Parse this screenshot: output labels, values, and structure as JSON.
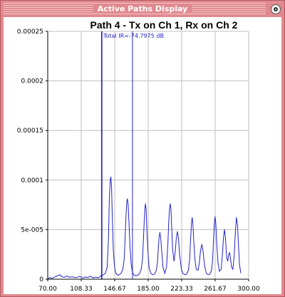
{
  "window": {
    "title": "Active Paths Display",
    "close_icon": "close-circle-icon"
  },
  "colors": {
    "frame": "#e08a8f",
    "plot_line": "#2222cc",
    "grid": "#bfbfbf"
  },
  "chart_data": {
    "type": "line",
    "title": "Path 4 - Tx on Ch 1, Rx on Ch 2",
    "annotation": "Total IR=-74.7975 dB",
    "xlabel": "",
    "ylabel": "",
    "xlim": [
      70.0,
      300.0
    ],
    "ylim": [
      0,
      0.00025
    ],
    "x_ticks": [
      "70.00",
      "108.33",
      "146.67",
      "185.00",
      "223.33",
      "261.67",
      "300.00"
    ],
    "x_tick_values": [
      70.0,
      108.33,
      146.67,
      185.0,
      223.33,
      261.67,
      300.0
    ],
    "y_ticks": [
      "0",
      "5e-005",
      "0.0001",
      "0.00015",
      "0.0002",
      "0.00025"
    ],
    "y_tick_values": [
      0,
      5e-05,
      0.0001,
      0.00015,
      0.0002,
      0.00025
    ],
    "grid": true,
    "markers": [
      {
        "x": 131.5,
        "type": "vertical"
      },
      {
        "x": 132.1,
        "type": "vertical"
      },
      {
        "x": 167.0,
        "type": "vertical"
      }
    ],
    "series": [
      {
        "peaks": [
          {
            "x": 142.3,
            "y": 0.000103
          },
          {
            "x": 161.2,
            "y": 8.1e-05
          },
          {
            "x": 181.9,
            "y": 7.6e-05
          },
          {
            "x": 198.4,
            "y": 4.7e-05
          },
          {
            "x": 210.3,
            "y": 7.6e-05
          },
          {
            "x": 218.4,
            "y": 4.8e-05
          },
          {
            "x": 235.3,
            "y": 6.2e-05
          },
          {
            "x": 246.4,
            "y": 3.5e-05
          },
          {
            "x": 261.6,
            "y": 6.3e-05
          },
          {
            "x": 272.3,
            "y": 5e-05
          },
          {
            "x": 278.0,
            "y": 2.7e-05
          },
          {
            "x": 286.0,
            "y": 6.2e-05
          }
        ],
        "points": [
          [
            70.0,
            0.0
          ],
          [
            72.0,
            1.5e-06
          ],
          [
            75.0,
            8e-07
          ],
          [
            78.0,
            2.2e-06
          ],
          [
            81.0,
            3.5e-06
          ],
          [
            84.0,
            4.5e-06
          ],
          [
            86.0,
            2.5e-06
          ],
          [
            89.0,
            2e-06
          ],
          [
            92.0,
            3.2e-06
          ],
          [
            95.0,
            1.8e-06
          ],
          [
            98.0,
            2.5e-06
          ],
          [
            101.0,
            1.5e-06
          ],
          [
            104.0,
            2e-06
          ],
          [
            107.0,
            2.8e-06
          ],
          [
            110.0,
            1e-06
          ],
          [
            113.0,
            2.2e-06
          ],
          [
            116.0,
            1.8e-06
          ],
          [
            119.0,
            3e-06
          ],
          [
            122.0,
            1.2e-06
          ],
          [
            125.0,
            2e-06
          ],
          [
            128.0,
            1.5e-06
          ],
          [
            131.0,
            3.5e-06
          ],
          [
            134.0,
            4.5e-06
          ],
          [
            136.0,
            6e-06
          ],
          [
            138.0,
            1.2e-05
          ],
          [
            139.5,
            4e-05
          ],
          [
            140.5,
            8e-05
          ],
          [
            141.5,
            0.0001
          ],
          [
            142.3,
            0.000103
          ],
          [
            143.0,
            9.5e-05
          ],
          [
            144.0,
            6e-05
          ],
          [
            145.0,
            3e-05
          ],
          [
            146.5,
            1.2e-05
          ],
          [
            148.0,
            6e-06
          ],
          [
            150.0,
            4e-06
          ],
          [
            152.0,
            4.5e-06
          ],
          [
            154.0,
            6e-06
          ],
          [
            156.0,
            1e-05
          ],
          [
            157.5,
            2e-05
          ],
          [
            158.5,
            4e-05
          ],
          [
            159.5,
            6.2e-05
          ],
          [
            160.5,
            7.8e-05
          ],
          [
            161.2,
            8.1e-05
          ],
          [
            162.0,
            7.6e-05
          ],
          [
            163.0,
            5.8e-05
          ],
          [
            164.0,
            3.5e-05
          ],
          [
            165.5,
            1.5e-05
          ],
          [
            167.0,
            7e-06
          ],
          [
            169.0,
            4e-06
          ],
          [
            171.0,
            3.5e-06
          ],
          [
            173.0,
            4e-06
          ],
          [
            175.0,
            5.5e-06
          ],
          [
            177.0,
            1e-05
          ],
          [
            178.5,
            2e-05
          ],
          [
            179.5,
            4e-05
          ],
          [
            180.5,
            6e-05
          ],
          [
            181.3,
            7.2e-05
          ],
          [
            181.9,
            7.6e-05
          ],
          [
            182.6,
            7e-05
          ],
          [
            183.5,
            5e-05
          ],
          [
            184.5,
            3e-05
          ],
          [
            186.0,
            1.2e-05
          ],
          [
            188.0,
            6e-06
          ],
          [
            190.0,
            4.5e-06
          ],
          [
            192.0,
            5e-06
          ],
          [
            194.0,
            8e-06
          ],
          [
            195.5,
            1.6e-05
          ],
          [
            196.5,
            3e-05
          ],
          [
            197.5,
            4.2e-05
          ],
          [
            198.4,
            4.7e-05
          ],
          [
            199.3,
            4.2e-05
          ],
          [
            200.5,
            2.8e-05
          ],
          [
            202.0,
            1.2e-05
          ],
          [
            204.0,
            6e-06
          ],
          [
            206.0,
            1.2e-05
          ],
          [
            207.5,
            3.5e-05
          ],
          [
            208.5,
            5.8e-05
          ],
          [
            209.5,
            7.2e-05
          ],
          [
            210.3,
            7.6e-05
          ],
          [
            211.1,
            7e-05
          ],
          [
            212.0,
            5e-05
          ],
          [
            213.0,
            3e-05
          ],
          [
            214.5,
            1.8e-05
          ],
          [
            216.0,
            2.8e-05
          ],
          [
            217.2,
            4.2e-05
          ],
          [
            218.4,
            4.8e-05
          ],
          [
            219.6,
            4.2e-05
          ],
          [
            221.0,
            2.5e-05
          ],
          [
            223.0,
            1e-05
          ],
          [
            225.0,
            5.5e-06
          ],
          [
            227.0,
            4.5e-06
          ],
          [
            229.0,
            5e-06
          ],
          [
            231.0,
            9e-06
          ],
          [
            232.5,
            2e-05
          ],
          [
            233.5,
            4e-05
          ],
          [
            234.5,
            5.6e-05
          ],
          [
            235.3,
            6.2e-05
          ],
          [
            236.1,
            5.6e-05
          ],
          [
            237.2,
            3.8e-05
          ],
          [
            238.5,
            2e-05
          ],
          [
            240.0,
            1e-05
          ],
          [
            242.0,
            9e-06
          ],
          [
            243.5,
            1.6e-05
          ],
          [
            244.8,
            2.8e-05
          ],
          [
            246.4,
            3.5e-05
          ],
          [
            247.8,
            2.8e-05
          ],
          [
            249.5,
            1.4e-05
          ],
          [
            251.5,
            6e-06
          ],
          [
            253.5,
            4.5e-06
          ],
          [
            255.5,
            5e-06
          ],
          [
            257.5,
            9e-06
          ],
          [
            258.8,
            2e-05
          ],
          [
            259.8,
            4e-05
          ],
          [
            260.8,
            5.7e-05
          ],
          [
            261.6,
            6.3e-05
          ],
          [
            262.4,
            5.6e-05
          ],
          [
            263.5,
            3.6e-05
          ],
          [
            264.8,
            1.8e-05
          ],
          [
            266.5,
            8e-06
          ],
          [
            268.5,
            1e-05
          ],
          [
            270.0,
            2.5e-05
          ],
          [
            271.2,
            4.2e-05
          ],
          [
            272.3,
            5e-05
          ],
          [
            273.4,
            4.2e-05
          ],
          [
            274.8,
            2.2e-05
          ],
          [
            276.0,
            1.8e-05
          ],
          [
            277.0,
            2.4e-05
          ],
          [
            278.0,
            2.7e-05
          ],
          [
            279.0,
            2.2e-05
          ],
          [
            280.5,
            1.2e-05
          ],
          [
            282.0,
            1e-05
          ],
          [
            283.5,
            2.5e-05
          ],
          [
            284.8,
            4.8e-05
          ],
          [
            286.0,
            6.2e-05
          ],
          [
            287.2,
            5.5e-05
          ],
          [
            288.3,
            3.5e-05
          ],
          [
            289.5,
            1.5e-05
          ],
          [
            291.0,
            6e-06
          ]
        ]
      }
    ]
  }
}
